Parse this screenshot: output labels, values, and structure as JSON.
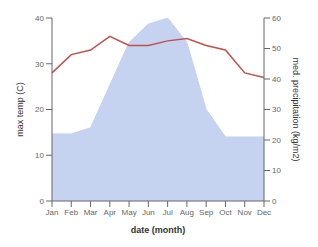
{
  "chart_data": {
    "type": "line",
    "xlabel": "date (month)",
    "ylabel": "max temp (C)",
    "y2label": "med. precipitation (kg/m2)",
    "categories": [
      "Jan",
      "Feb",
      "Mar",
      "Apr",
      "May",
      "Jun",
      "Jul",
      "Aug",
      "Sep",
      "Oct",
      "Nov",
      "Dec"
    ],
    "series": [
      {
        "type": "area",
        "color": "#c5d3f0",
        "axis": "y2",
        "values": [
          22,
          22,
          24,
          38,
          52,
          58,
          60,
          52,
          30,
          21,
          21,
          21
        ]
      },
      {
        "type": "line",
        "color": "#c0504d",
        "values": [
          28,
          32,
          33,
          36,
          34,
          34,
          35,
          35.5,
          34,
          33,
          28,
          27
        ]
      }
    ],
    "ylim": [
      0,
      40
    ],
    "yticks": [
      0,
      10,
      20,
      30,
      40
    ],
    "y2lim": [
      0,
      60
    ],
    "y2ticks": [
      0,
      10,
      20,
      30,
      40,
      50,
      60
    ],
    "grid": false
  }
}
